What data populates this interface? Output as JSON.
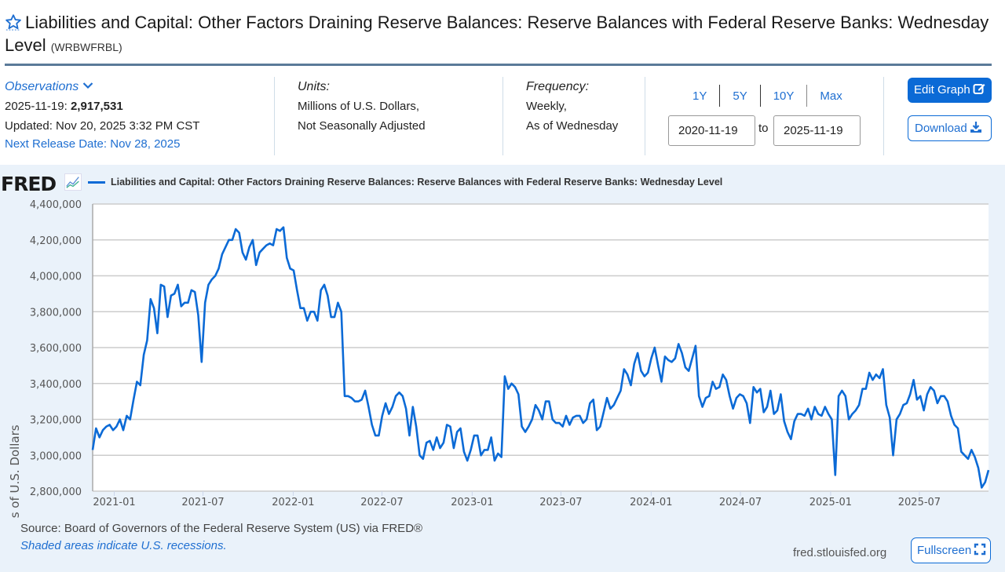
{
  "header": {
    "title": "Liabilities and Capital: Other Factors Draining Reserve Balances: Reserve Balances with Federal Reserve Banks: Wednesday Level",
    "series_id": "(WRBWFRBL)",
    "favorite_icon": "star-icon"
  },
  "observations": {
    "label": "Observations",
    "date": "2025-11-19:",
    "value": "2,917,531",
    "updated": "Updated: Nov 20, 2025 3:32 PM CST",
    "next_release": "Next Release Date: Nov 28, 2025"
  },
  "units": {
    "label": "Units:",
    "line1": "Millions of U.S. Dollars,",
    "line2": "Not Seasonally Adjusted"
  },
  "frequency": {
    "label": "Frequency:",
    "line1": "Weekly,",
    "line2": "As of Wednesday"
  },
  "range": {
    "buttons": [
      "1Y",
      "5Y",
      "10Y",
      "Max"
    ],
    "start": "2020-11-19",
    "to_label": "to",
    "end": "2025-11-19"
  },
  "actions": {
    "edit_graph": "Edit Graph",
    "download": "Download",
    "fullscreen": "Fullscreen"
  },
  "footer": {
    "source": "Source: Board of Governors of the Federal Reserve System (US) via FRED®",
    "recessions": "Shaded areas indicate U.S. recessions.",
    "site": "fred.stlouisfed.org"
  },
  "brand": {
    "logo": "FRED",
    "line_color": "#0b6ad6",
    "accent": "#1f6fd1"
  },
  "chart_data": {
    "type": "line",
    "title": "Liabilities and Capital: Other Factors Draining Reserve Balances: Reserve Balances with Federal Reserve Banks: Wednesday Level",
    "xlabel": "",
    "ylabel": "Millions of U.S. Dollars",
    "ylim": [
      2800000,
      4400000
    ],
    "xlim": [
      "2020-11-18",
      "2025-11-19"
    ],
    "yticks": [
      2800000,
      3000000,
      3200000,
      3400000,
      3600000,
      3800000,
      4000000,
      4200000,
      4400000
    ],
    "ytick_labels": [
      "2,800,000",
      "3,000,000",
      "3,200,000",
      "3,400,000",
      "3,600,000",
      "3,800,000",
      "4,000,000",
      "4,200,000",
      "4,400,000"
    ],
    "xticks": [
      "2021-01",
      "2021-07",
      "2022-01",
      "2022-07",
      "2023-01",
      "2023-07",
      "2024-01",
      "2024-07",
      "2025-01",
      "2025-07"
    ],
    "grid": true,
    "legend": "top-left",
    "series": [
      {
        "name": "Liabilities and Capital: Other Factors Draining Reserve Balances: Reserve Balances with Federal Reserve Banks: Wednesday Level",
        "start_date": "2020-11-18",
        "step_days": 7,
        "values": [
          3030000,
          3150000,
          3100000,
          3140000,
          3160000,
          3170000,
          3140000,
          3160000,
          3200000,
          3140000,
          3220000,
          3200000,
          3310000,
          3410000,
          3390000,
          3560000,
          3640000,
          3870000,
          3820000,
          3680000,
          3950000,
          3940000,
          3770000,
          3890000,
          3900000,
          3950000,
          3830000,
          3850000,
          3850000,
          3920000,
          3910000,
          3780000,
          3520000,
          3850000,
          3950000,
          3980000,
          4000000,
          4040000,
          4120000,
          4160000,
          4200000,
          4200000,
          4260000,
          4240000,
          4130000,
          4090000,
          4160000,
          4200000,
          4060000,
          4130000,
          4150000,
          4170000,
          4180000,
          4170000,
          4260000,
          4250000,
          4270000,
          4100000,
          4040000,
          4030000,
          3920000,
          3820000,
          3820000,
          3750000,
          3800000,
          3800000,
          3750000,
          3920000,
          3950000,
          3890000,
          3770000,
          3770000,
          3850000,
          3800000,
          3330000,
          3330000,
          3320000,
          3300000,
          3300000,
          3310000,
          3360000,
          3270000,
          3170000,
          3110000,
          3110000,
          3220000,
          3290000,
          3230000,
          3270000,
          3330000,
          3350000,
          3330000,
          3260000,
          3110000,
          3270000,
          3160000,
          3000000,
          2980000,
          3070000,
          3080000,
          3030000,
          3100000,
          3040000,
          3070000,
          3170000,
          3160000,
          3040000,
          3130000,
          3150000,
          3020000,
          2970000,
          3030000,
          3110000,
          3110000,
          3000000,
          3030000,
          3030000,
          3100000,
          2970000,
          3010000,
          2990000,
          3440000,
          3370000,
          3400000,
          3380000,
          3340000,
          3160000,
          3130000,
          3160000,
          3200000,
          3280000,
          3250000,
          3200000,
          3300000,
          3300000,
          3200000,
          3180000,
          3180000,
          3160000,
          3220000,
          3170000,
          3210000,
          3220000,
          3220000,
          3180000,
          3200000,
          3290000,
          3310000,
          3140000,
          3160000,
          3240000,
          3320000,
          3260000,
          3280000,
          3320000,
          3360000,
          3480000,
          3450000,
          3390000,
          3510000,
          3570000,
          3470000,
          3440000,
          3460000,
          3540000,
          3600000,
          3500000,
          3410000,
          3550000,
          3530000,
          3520000,
          3540000,
          3620000,
          3570000,
          3490000,
          3470000,
          3540000,
          3610000,
          3330000,
          3270000,
          3320000,
          3330000,
          3410000,
          3370000,
          3380000,
          3450000,
          3420000,
          3330000,
          3260000,
          3320000,
          3340000,
          3330000,
          3290000,
          3180000,
          3380000,
          3350000,
          3370000,
          3240000,
          3270000,
          3360000,
          3230000,
          3250000,
          3340000,
          3190000,
          3130000,
          3090000,
          3190000,
          3230000,
          3230000,
          3220000,
          3260000,
          3200000,
          3270000,
          3230000,
          3220000,
          3270000,
          3230000,
          3200000,
          2890000,
          3330000,
          3360000,
          3330000,
          3200000,
          3230000,
          3250000,
          3280000,
          3370000,
          3370000,
          3460000,
          3420000,
          3450000,
          3430000,
          3480000,
          3280000,
          3210000,
          3000000,
          3200000,
          3230000,
          3280000,
          3290000,
          3340000,
          3420000,
          3310000,
          3330000,
          3250000,
          3340000,
          3380000,
          3360000,
          3290000,
          3330000,
          3330000,
          3300000,
          3220000,
          3170000,
          3150000,
          3020000,
          3000000,
          2980000,
          3030000,
          2990000,
          2930000,
          2820000,
          2850000,
          2917531
        ]
      }
    ]
  }
}
